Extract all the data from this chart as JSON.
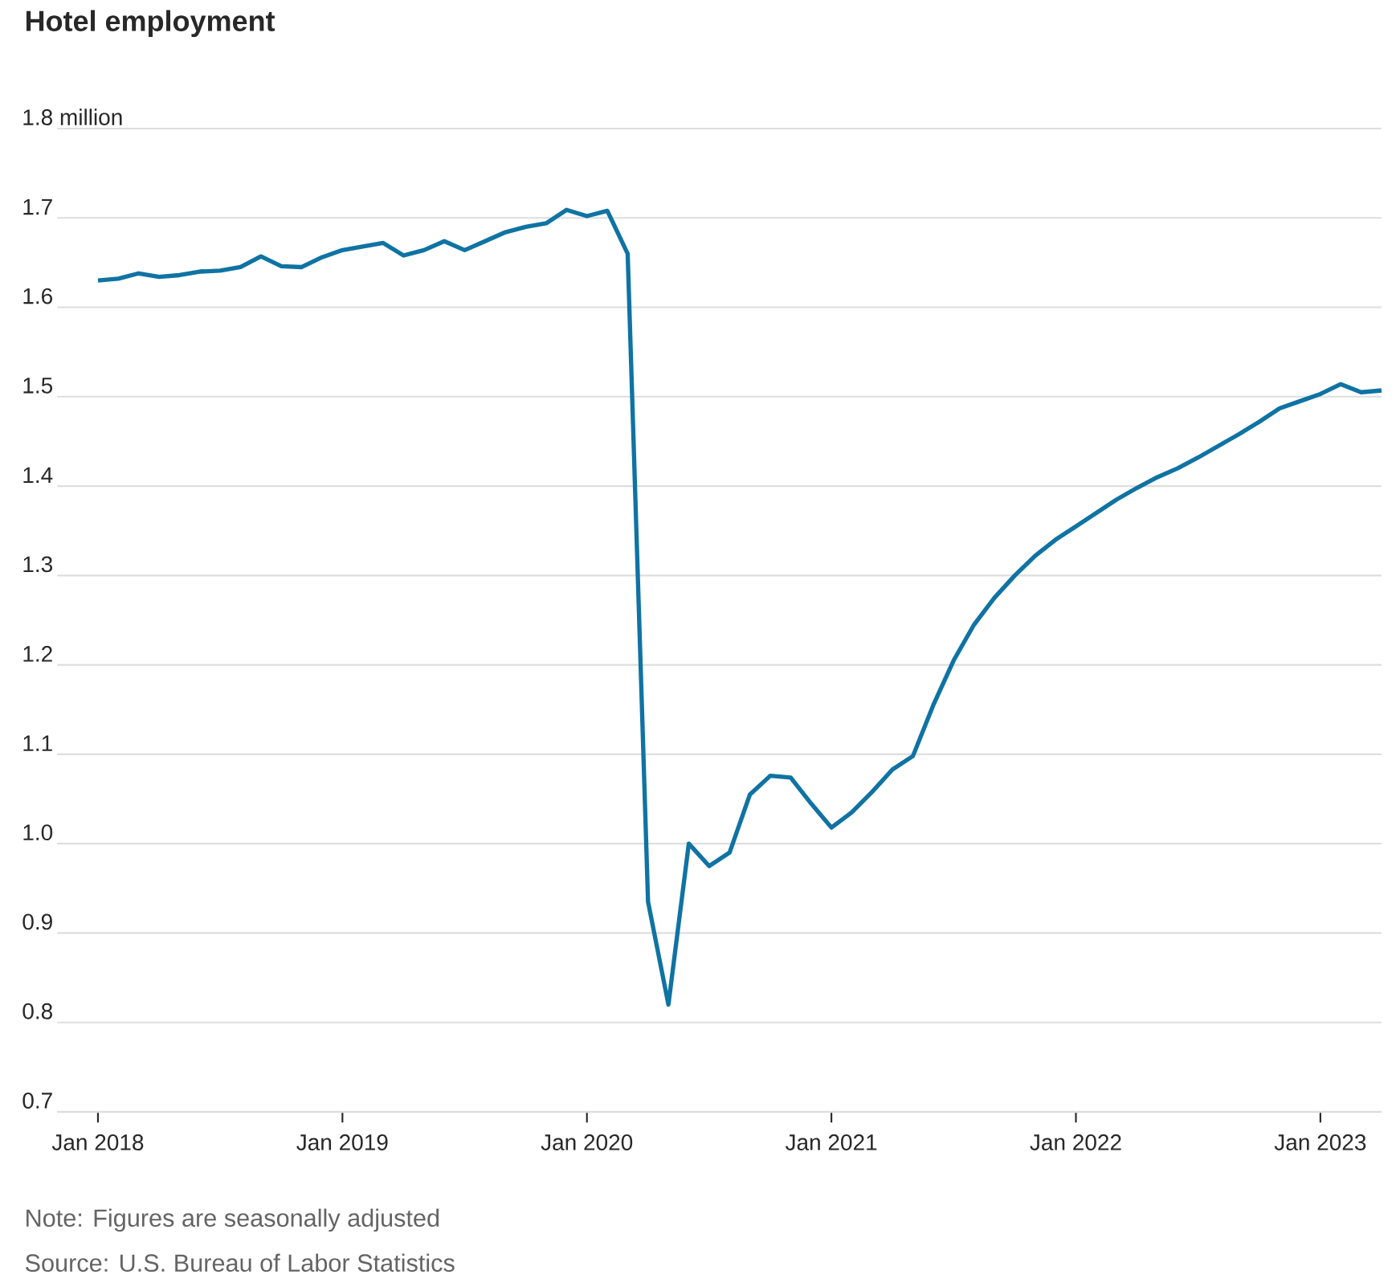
{
  "chart_data": {
    "type": "line",
    "title": "Hotel employment",
    "x": [
      "2018-01",
      "2018-02",
      "2018-03",
      "2018-04",
      "2018-05",
      "2018-06",
      "2018-07",
      "2018-08",
      "2018-09",
      "2018-10",
      "2018-11",
      "2018-12",
      "2019-01",
      "2019-02",
      "2019-03",
      "2019-04",
      "2019-05",
      "2019-06",
      "2019-07",
      "2019-08",
      "2019-09",
      "2019-10",
      "2019-11",
      "2019-12",
      "2020-01",
      "2020-02",
      "2020-03",
      "2020-04",
      "2020-05",
      "2020-06",
      "2020-07",
      "2020-08",
      "2020-09",
      "2020-10",
      "2020-11",
      "2020-12",
      "2021-01",
      "2021-02",
      "2021-03",
      "2021-04",
      "2021-05",
      "2021-06",
      "2021-07",
      "2021-08",
      "2021-09",
      "2021-10",
      "2021-11",
      "2021-12",
      "2022-01",
      "2022-02",
      "2022-03",
      "2022-04",
      "2022-05",
      "2022-06",
      "2022-07",
      "2022-08",
      "2022-09",
      "2022-10",
      "2022-11",
      "2022-12",
      "2023-01",
      "2023-02",
      "2023-03",
      "2023-04"
    ],
    "series": [
      {
        "color": "#0f73a3",
        "values": [
          1.63,
          1.632,
          1.638,
          1.634,
          1.636,
          1.64,
          1.641,
          1.645,
          1.657,
          1.646,
          1.645,
          1.656,
          1.664,
          1.668,
          1.672,
          1.658,
          1.664,
          1.674,
          1.664,
          1.674,
          1.684,
          1.69,
          1.694,
          1.709,
          1.702,
          1.708,
          1.66,
          0.935,
          0.82,
          1.0,
          0.975,
          0.99,
          1.055,
          1.076,
          1.074,
          1.045,
          1.018,
          1.035,
          1.058,
          1.083,
          1.098,
          1.155,
          1.205,
          1.245,
          1.275,
          1.3,
          1.322,
          1.34,
          1.355,
          1.37,
          1.385,
          1.398,
          1.41,
          1.42,
          1.432,
          1.445,
          1.458,
          1.472,
          1.487,
          1.495,
          1.503,
          1.514,
          1.505,
          1.507
        ]
      }
    ],
    "xlim": [
      "2017-11",
      "2023-04"
    ],
    "xticks": [
      {
        "value": "2018-01",
        "label": "Jan 2018"
      },
      {
        "value": "2019-01",
        "label": "Jan 2019"
      },
      {
        "value": "2020-01",
        "label": "Jan 2020"
      },
      {
        "value": "2021-01",
        "label": "Jan 2021"
      },
      {
        "value": "2022-01",
        "label": "Jan 2022"
      },
      {
        "value": "2023-01",
        "label": "Jan 2023"
      }
    ],
    "ylim": [
      0.7,
      1.8
    ],
    "yticks": [
      {
        "value": 0.7,
        "label": "0.7"
      },
      {
        "value": 0.8,
        "label": "0.8"
      },
      {
        "value": 0.9,
        "label": "0.9"
      },
      {
        "value": 1.0,
        "label": "1.0"
      },
      {
        "value": 1.1,
        "label": "1.1"
      },
      {
        "value": 1.2,
        "label": "1.2"
      },
      {
        "value": 1.3,
        "label": "1.3"
      },
      {
        "value": 1.4,
        "label": "1.4"
      },
      {
        "value": 1.5,
        "label": "1.5"
      },
      {
        "value": 1.6,
        "label": "1.6"
      },
      {
        "value": 1.7,
        "label": "1.7"
      },
      {
        "value": 1.8,
        "label": "1.8 million"
      }
    ],
    "grid": "y",
    "marker": "none",
    "line_style": "solid",
    "annotations": [
      "Note: Figures are seasonally adjusted",
      "Source: U.S. Bureau of Labor Statistics"
    ]
  }
}
